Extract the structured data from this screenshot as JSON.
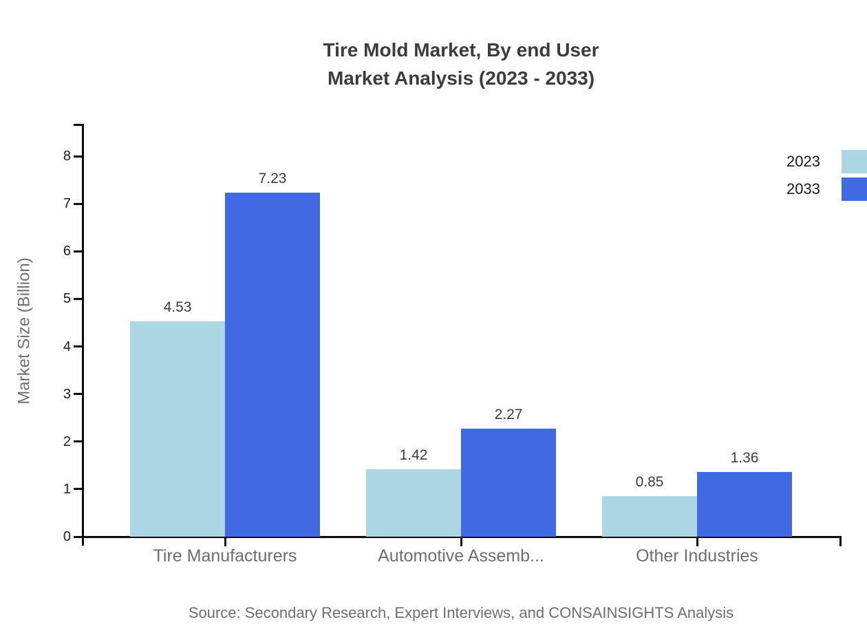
{
  "title": {
    "line1": "Tire Mold Market, By end User",
    "line2": "Market Analysis (2023 - 2033)"
  },
  "source": "Source: Secondary Research, Expert Interviews, and CONSAINSIGHTS Analysis",
  "colors": {
    "series_2023": "#ADD6E4",
    "series_2033": "#4169E1",
    "axis": "#0a0a0a",
    "title_text": "#3c3c3c",
    "muted_text": "#6e6e6e"
  },
  "chart_data": {
    "type": "bar",
    "title": "Tire Mold Market, By end User Market Analysis (2023 - 2033)",
    "categories": [
      "Tire Manufacturers",
      "Automotive Assemb...",
      "Other Industries"
    ],
    "series": [
      {
        "name": "2023",
        "color": "#ADD6E4",
        "values": [
          4.53,
          1.42,
          0.85
        ]
      },
      {
        "name": "2033",
        "color": "#4169E1",
        "values": [
          7.23,
          2.27,
          1.36
        ]
      }
    ],
    "xlabel": "",
    "ylabel": "Market Size (Billion)",
    "yticks": [
      0,
      1,
      2,
      3,
      4,
      5,
      6,
      7,
      8
    ],
    "ylim": [
      0,
      8.68
    ],
    "grid": false,
    "legend_position": "top-right",
    "value_labels": true
  }
}
